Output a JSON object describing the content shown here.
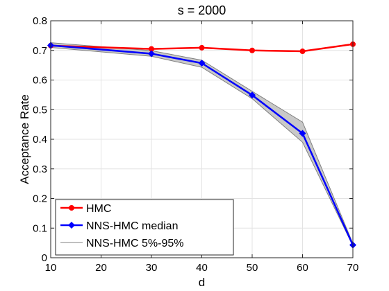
{
  "chart_data": {
    "type": "line",
    "title": "s = 2000",
    "xlabel": "d",
    "ylabel": "Acceptance Rate",
    "x": [
      10,
      20,
      30,
      40,
      50,
      60,
      70
    ],
    "xticks": [
      "10",
      "20",
      "30",
      "40",
      "50",
      "60",
      "70"
    ],
    "yticks": [
      "0",
      "0.1",
      "0.2",
      "0.3",
      "0.4",
      "0.5",
      "0.6",
      "0.7",
      "0.8"
    ],
    "xlim": [
      10,
      70
    ],
    "ylim": [
      0,
      0.8
    ],
    "grid": true,
    "legend_position": "bottom-left",
    "series": [
      {
        "name": "HMC",
        "color": "#ff0000",
        "marker": "circle",
        "x": [
          10,
          30,
          40,
          50,
          60,
          70
        ],
        "values": [
          0.716,
          0.705,
          0.709,
          0.7,
          0.697,
          0.721
        ]
      },
      {
        "name": "NNS-HMC median",
        "color": "#0000ff",
        "marker": "diamond",
        "x": [
          10,
          30,
          40,
          50,
          60,
          70
        ],
        "values": [
          0.717,
          0.689,
          0.657,
          0.549,
          0.42,
          0.043
        ]
      },
      {
        "name": "NNS-HMC 5%-95%",
        "color": "#808080",
        "fill": "#c8c8c8",
        "type": "band",
        "x": [
          10,
          30,
          40,
          50,
          60,
          70
        ],
        "lower": [
          0.71,
          0.68,
          0.643,
          0.537,
          0.39,
          0.04
        ],
        "upper": [
          0.726,
          0.699,
          0.667,
          0.562,
          0.458,
          0.048
        ]
      }
    ]
  }
}
